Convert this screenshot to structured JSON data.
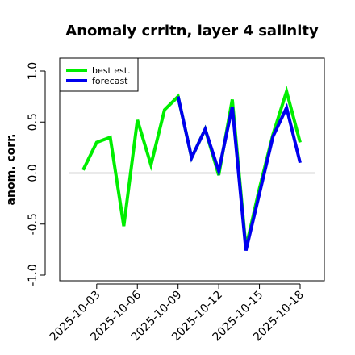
{
  "chart_data": {
    "type": "line",
    "title": "Anomaly crrltn, layer 4 salinity",
    "xlabel": "",
    "ylabel": "anom. corr.",
    "ylim": [
      -1.0,
      1.0
    ],
    "yticks": [
      "-1.0",
      "-0.5",
      "0.0",
      "0.5",
      "1.0"
    ],
    "yticks_values": [
      -1.0,
      -0.5,
      0.0,
      0.5,
      1.0
    ],
    "x_dates": [
      "2025-10-02",
      "2025-10-03",
      "2025-10-04",
      "2025-10-05",
      "2025-10-06",
      "2025-10-07",
      "2025-10-08",
      "2025-10-09",
      "2025-10-10",
      "2025-10-11",
      "2025-10-12",
      "2025-10-13",
      "2025-10-14",
      "2025-10-15",
      "2025-10-16",
      "2025-10-17",
      "2025-10-18"
    ],
    "xticks": [
      "2025-10-03",
      "2025-10-06",
      "2025-10-09",
      "2025-10-12",
      "2025-10-15",
      "2025-10-18"
    ],
    "xtick_colors": [
      "#000000",
      "#000000",
      "#228b22",
      "#000000",
      "#000000",
      "#000000"
    ],
    "reference_line": 0.0,
    "legend_position": "top-left",
    "series": [
      {
        "name": "best est.",
        "color": "#00ee00",
        "x": [
          "2025-10-02",
          "2025-10-03",
          "2025-10-04",
          "2025-10-05",
          "2025-10-06",
          "2025-10-07",
          "2025-10-08",
          "2025-10-09",
          "2025-10-10",
          "2025-10-11",
          "2025-10-12",
          "2025-10-13",
          "2025-10-14",
          "2025-10-15",
          "2025-10-16",
          "2025-10-17",
          "2025-10-18"
        ],
        "values": [
          0.03,
          0.3,
          0.35,
          -0.52,
          0.52,
          0.08,
          0.62,
          0.75,
          0.15,
          0.43,
          -0.02,
          0.72,
          -0.73,
          -0.15,
          0.38,
          0.8,
          0.3
        ]
      },
      {
        "name": "forecast",
        "color": "#0000ee",
        "x": [
          "2025-10-09",
          "2025-10-10",
          "2025-10-11",
          "2025-10-12",
          "2025-10-13",
          "2025-10-14",
          "2025-10-15",
          "2025-10-16",
          "2025-10-17",
          "2025-10-18"
        ],
        "values": [
          0.75,
          0.15,
          0.43,
          0.02,
          0.65,
          -0.76,
          -0.2,
          0.36,
          0.64,
          0.1
        ]
      }
    ]
  }
}
